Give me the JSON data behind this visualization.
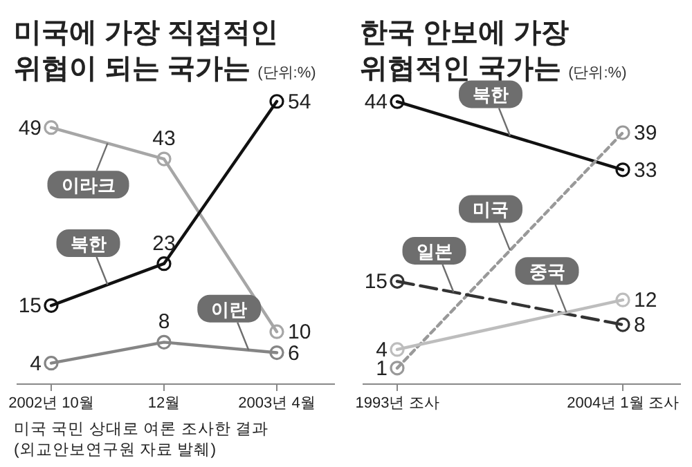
{
  "chart_data": [
    {
      "type": "line",
      "title": "미국에 가장 직접적인 위협이 되는 국가는",
      "subtitle": "(단위:%)",
      "categories": [
        "2002년 10월",
        "12월",
        "2003년 4월"
      ],
      "marker": "circle",
      "data_labels": true,
      "series": [
        {
          "name": "이라크",
          "color": "#a6a6a6",
          "values": [
            49,
            43,
            10
          ]
        },
        {
          "name": "북한",
          "color": "#111111",
          "values": [
            15,
            23,
            54
          ]
        },
        {
          "name": "이란",
          "color": "#858585",
          "values": [
            4,
            8,
            6
          ]
        }
      ],
      "annotations": [
        "미국 국민 상대로 여론 조사한 결과 (외교안보연구원 자료 발췌)"
      ]
    },
    {
      "type": "line",
      "title": "한국 안보에 가장 위협적인 국가는",
      "subtitle": "(단위:%)",
      "categories": [
        "1993년 조사",
        "2004년 1월 조사"
      ],
      "marker": "circle",
      "data_labels": true,
      "series": [
        {
          "name": "북한",
          "color": "#111111",
          "values": [
            44,
            33
          ]
        },
        {
          "name": "미국",
          "color": "#999999",
          "values": [
            1,
            39
          ],
          "line_style": "dotted"
        },
        {
          "name": "일본",
          "color": "#333333",
          "values": [
            15,
            8
          ],
          "line_style": "dashed"
        },
        {
          "name": "중국",
          "color": "#bdbdbd",
          "values": [
            4,
            12
          ]
        }
      ]
    }
  ]
}
